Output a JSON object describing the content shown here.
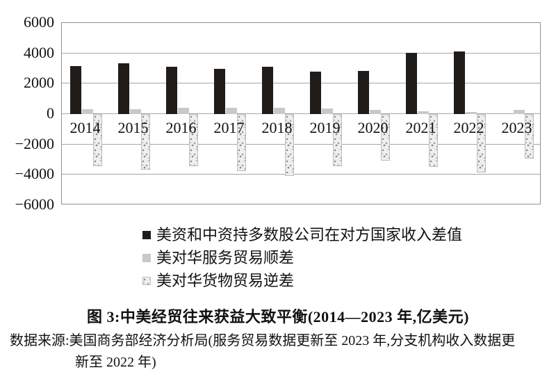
{
  "chart_data": {
    "type": "bar",
    "unit": "亿美元",
    "categories": [
      "2014",
      "2015",
      "2016",
      "2017",
      "2018",
      "2019",
      "2020",
      "2021",
      "2022",
      "2023"
    ],
    "series": [
      {
        "key": "income-diff",
        "name": "美资和中资持多数股公司在对方国家收入差值",
        "swatch": "solid-black",
        "color": "#201c1a",
        "values": [
          3170,
          3330,
          3110,
          2980,
          3100,
          2780,
          2830,
          4030,
          4110,
          null
        ]
      },
      {
        "key": "services-surplus",
        "name": "美对华服务贸易顺差",
        "swatch": "solid-gray",
        "color": "#c8c8c8",
        "values": [
          310,
          330,
          400,
          410,
          410,
          380,
          260,
          180,
          120,
          270
        ]
      },
      {
        "key": "goods-deficit",
        "name": "美对华货物贸易逆差",
        "swatch": "speckled",
        "color": "#efeeec",
        "values": [
          -3440,
          -3650,
          -3450,
          -3760,
          -4090,
          -3450,
          -3060,
          -3480,
          -3850,
          -2930
        ]
      }
    ],
    "ylim": [
      -6000,
      6000
    ],
    "ytick_interval": 2000,
    "yticks": [
      "6000",
      "4000",
      "2000",
      "0",
      "−2000",
      "−4000",
      "−6000"
    ],
    "grid": true,
    "legend_position": "below-left",
    "title": "图 3:中美经贸往来获益大致平衡(2014—2023 年,亿美元)"
  },
  "caption": {
    "text": "图 3:中美经贸往来获益大致平衡(2014—2023 年,亿美元)"
  },
  "source": {
    "line1": "数据来源:美国商务部经济分析局(服务贸易数据更新至 2023 年,分支机构收入数据更",
    "line2": "新至 2022 年)"
  }
}
